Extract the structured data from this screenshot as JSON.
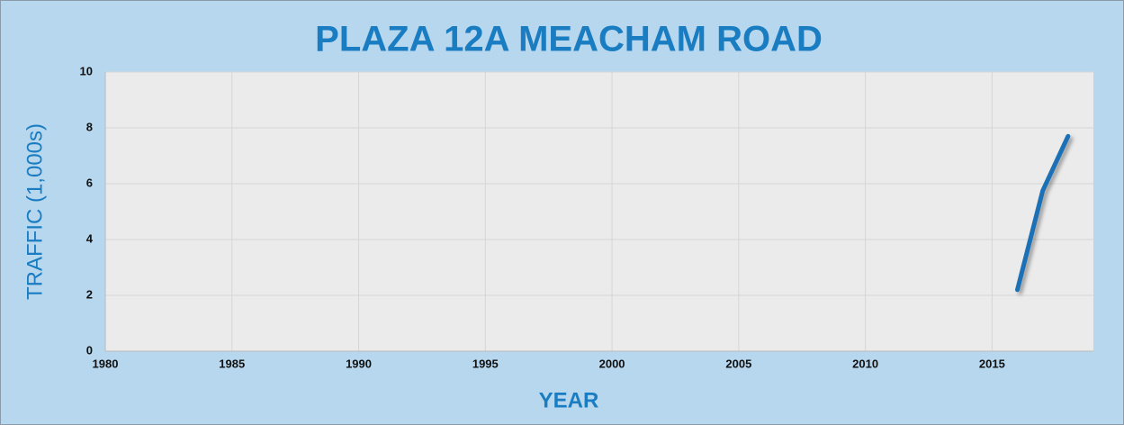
{
  "chart_data": {
    "type": "line",
    "title": "PLAZA 12A MEACHAM ROAD",
    "x_label": "YEAR",
    "y_label": "TRAFFIC (1,000s)",
    "x": [
      2016,
      2017,
      2018
    ],
    "series": [
      {
        "name": "Traffic",
        "color": "#1f6fb5",
        "values": [
          2.2,
          5.75,
          7.7
        ]
      }
    ],
    "xlim": [
      1980,
      2019
    ],
    "xticks": [
      1980,
      1985,
      1990,
      1995,
      2000,
      2005,
      2010,
      2015
    ],
    "ylim": [
      0,
      10
    ],
    "yticks": [
      0,
      2,
      4,
      6,
      8,
      10
    ],
    "grid": true
  }
}
